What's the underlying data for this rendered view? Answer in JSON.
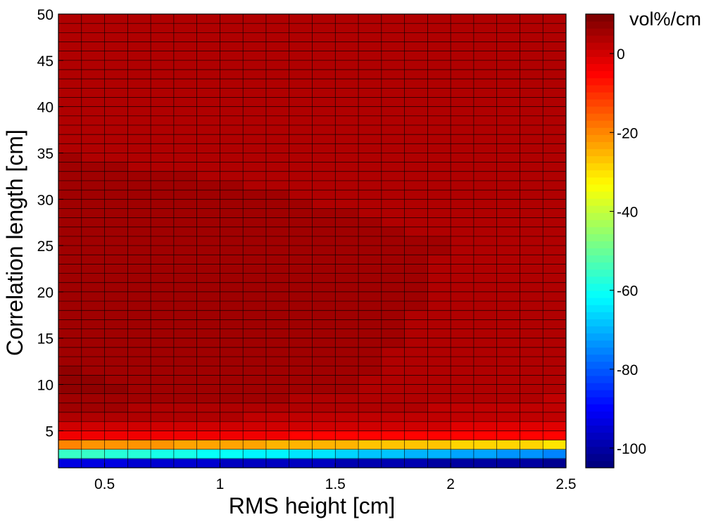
{
  "chart_data": {
    "type": "heatmap",
    "title": "",
    "xlabel": "RMS height [cm]",
    "ylabel": "Correlation length [cm]",
    "xlim": [
      0.3,
      2.5
    ],
    "ylim": [
      1,
      50
    ],
    "x_ticks": [
      0.5,
      1,
      1.5,
      2,
      2.5
    ],
    "x_tick_labels": [
      "0.5",
      "1",
      "1.5",
      "2",
      "2.5"
    ],
    "y_ticks": [
      5,
      10,
      15,
      20,
      25,
      30,
      35,
      40,
      45,
      50
    ],
    "y_tick_labels": [
      "5",
      "10",
      "15",
      "20",
      "25",
      "30",
      "35",
      "40",
      "45",
      "50"
    ],
    "x_cells": 22,
    "y_cells": 49,
    "cell_grid": true,
    "rows_by_correlation_length": [
      {
        "y": 1.5,
        "values_at_x_start_end": [
          -93,
          -102
        ]
      },
      {
        "y": 2.5,
        "values_at_x_start_end": [
          -55,
          -75
        ]
      },
      {
        "y": 3.5,
        "values_at_x_start_end": [
          -20,
          -30
        ]
      },
      {
        "y": 4.5,
        "values_at_x_start_end": [
          -3,
          -6
        ]
      },
      {
        "y": 6,
        "values_at_x_start_end": [
          3,
          1
        ]
      },
      {
        "y": 9,
        "values_at_x_start_end": [
          7,
          3
        ]
      },
      {
        "y": 15,
        "values_at_x_start_end": [
          6,
          4
        ]
      },
      {
        "y": 25,
        "values_at_x_start_end": [
          5,
          4.5
        ]
      },
      {
        "y": 50,
        "values_at_x_start_end": [
          4,
          4
        ]
      }
    ],
    "colorbar": {
      "label": "vol%/cm",
      "range": [
        -105,
        10
      ],
      "ticks": [
        0,
        -20,
        -40,
        -60,
        -80,
        -100
      ],
      "tick_labels": [
        "0",
        "-20",
        "-40",
        "-60",
        "-80",
        "-100"
      ],
      "colormap": "jet",
      "levels": 64,
      "position": "right"
    }
  }
}
